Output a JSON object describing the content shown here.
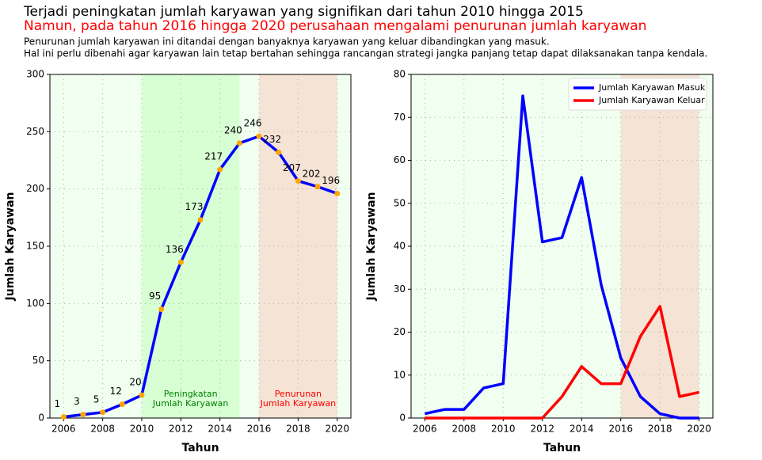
{
  "header": {
    "title": "Terjadi peningkatan jumlah karyawan yang signifikan dari tahun 2010 hingga 2015",
    "subtitle": "Namun, pada tahun 2016 hingga 2020 perusahaan mengalami penurunan jumlah karyawan",
    "notes": [
      "Penurunan jumlah karyawan ini ditandai dengan banyaknya karyawan yang keluar dibandingkan yang masuk.",
      "Hal ini perlu dibenahi agar karyawan lain tetap bertahan sehingga rancangan strategi jangka panjang tetap dapat dilaksanakan tanpa kendala."
    ]
  },
  "chart_data": [
    {
      "type": "line",
      "xlabel": "Tahun",
      "ylabel": "Jumlah Karyawan",
      "x": [
        2006,
        2007,
        2008,
        2009,
        2010,
        2011,
        2012,
        2013,
        2014,
        2015,
        2016,
        2017,
        2018,
        2019,
        2020
      ],
      "series": [
        {
          "color": "#0000ff",
          "marker_color": "#ffa500",
          "values": [
            1,
            3,
            5,
            12,
            20,
            95,
            136,
            173,
            217,
            240,
            246,
            232,
            207,
            202,
            196
          ]
        }
      ],
      "show_value_labels": true,
      "xlim": [
        2005.3,
        2020.7
      ],
      "xticks": [
        2006,
        2008,
        2010,
        2012,
        2014,
        2016,
        2018,
        2020
      ],
      "ylim": [
        0,
        300
      ],
      "yticks": [
        0,
        50,
        100,
        150,
        200,
        250,
        300
      ],
      "grid": true,
      "background": "#f0fff0",
      "spans": [
        {
          "x0": 2010,
          "x1": 2015,
          "color": "#d8ffd4",
          "label_lines": [
            "Peningkatan",
            "Jumlah Karyawan"
          ],
          "label_color": "#008000"
        },
        {
          "x0": 2016,
          "x1": 2020,
          "color": "#f5e3d5",
          "label_lines": [
            "Penurunan",
            "Jumlah Karyawan"
          ],
          "label_color": "#ff0000"
        }
      ]
    },
    {
      "type": "line",
      "xlabel": "Tahun",
      "ylabel": "Jumlah Karyawan",
      "x": [
        2006,
        2007,
        2008,
        2009,
        2010,
        2011,
        2012,
        2013,
        2014,
        2015,
        2016,
        2017,
        2018,
        2019,
        2020
      ],
      "series": [
        {
          "name": "Jumlah Karyawan Masuk",
          "color": "#0000ff",
          "values": [
            1,
            2,
            2,
            7,
            8,
            75,
            41,
            42,
            56,
            31,
            14,
            5,
            1,
            0,
            0
          ]
        },
        {
          "name": "Jumlah Karyawan Keluar",
          "color": "#ff0000",
          "values": [
            0,
            0,
            0,
            0,
            0,
            0,
            0,
            5,
            12,
            8,
            8,
            19,
            26,
            5,
            6
          ]
        }
      ],
      "legend": "upper-right",
      "xlim": [
        2005.3,
        2020.7
      ],
      "xticks": [
        2006,
        2008,
        2010,
        2012,
        2014,
        2016,
        2018,
        2020
      ],
      "ylim": [
        0,
        80
      ],
      "yticks": [
        0,
        10,
        20,
        30,
        40,
        50,
        60,
        70,
        80
      ],
      "grid": true,
      "background": "#f0fff0",
      "spans": [
        {
          "x0": 2016,
          "x1": 2020,
          "color": "#f5e3d5"
        }
      ]
    }
  ]
}
